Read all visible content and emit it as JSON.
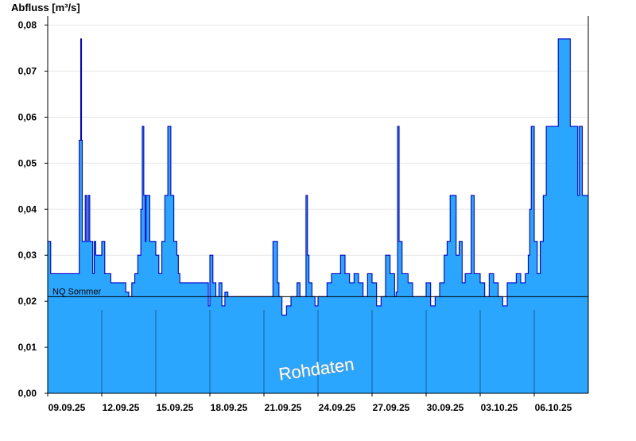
{
  "colors": {
    "fill": "#2aa6ff",
    "line": "#0000d0",
    "grid": "#e6e6e6",
    "ref_line": "#000000",
    "day_line": "#1f5f8f"
  },
  "chart_data": {
    "type": "area",
    "ylabel": "Abfluss [m³/s]",
    "ylim": [
      0,
      0.082
    ],
    "y_ticks": [
      0,
      0.01,
      0.02,
      0.03,
      0.04,
      0.05,
      0.06,
      0.07,
      0.08
    ],
    "y_tick_labels": [
      "0,00",
      "0,01",
      "0,02",
      "0,03",
      "0,04",
      "0,05",
      "0,06",
      "0,07",
      "0,08"
    ],
    "xlim": [
      "2025-09-09T00:00",
      "2025-10-09T00:00"
    ],
    "x_ticks": [
      "2025-09-09",
      "2025-09-12",
      "2025-09-15",
      "2025-09-18",
      "2025-09-21",
      "2025-09-24",
      "2025-09-27",
      "2025-09-30",
      "2025-10-03",
      "2025-10-06"
    ],
    "x_tick_labels": [
      "09.09.25",
      "12.09.25",
      "15.09.25",
      "18.09.25",
      "21.09.25",
      "24.09.25",
      "27.09.25",
      "30.09.25",
      "03.10.25",
      "06.10.25"
    ],
    "grid": true,
    "reference_line": {
      "label": "NQ Sommer",
      "value": 0.021
    },
    "watermark": "Rohdaten",
    "series": [
      {
        "x": [
          "2025-09-09T00:00",
          "2025-09-09T04:00",
          "2025-09-09T06:00",
          "2025-09-09T08:00",
          "2025-09-10T00:00",
          "2025-09-10T16:00",
          "2025-09-10T18:00",
          "2025-09-10T20:00",
          "2025-09-10T21:00",
          "2025-09-10T22:00",
          "2025-09-11T00:00",
          "2025-09-11T02:00",
          "2025-09-11T04:00",
          "2025-09-11T06:00",
          "2025-09-11T08:00",
          "2025-09-11T10:00",
          "2025-09-11T12:00",
          "2025-09-11T14:00",
          "2025-09-11T16:00",
          "2025-09-12T00:00",
          "2025-09-12T04:00",
          "2025-09-12T08:00",
          "2025-09-12T12:00",
          "2025-09-12T16:00",
          "2025-09-13T00:00",
          "2025-09-13T08:00",
          "2025-09-13T12:00",
          "2025-09-13T16:00",
          "2025-09-13T20:00",
          "2025-09-14T00:00",
          "2025-09-14T04:00",
          "2025-09-14T06:00",
          "2025-09-14T08:00",
          "2025-09-14T10:00",
          "2025-09-14T11:00",
          "2025-09-14T12:00",
          "2025-09-14T14:00",
          "2025-09-14T16:00",
          "2025-09-15T00:00",
          "2025-09-15T04:00",
          "2025-09-15T08:00",
          "2025-09-15T12:00",
          "2025-09-15T16:00",
          "2025-09-15T20:00",
          "2025-09-16T00:00",
          "2025-09-16T04:00",
          "2025-09-16T06:00",
          "2025-09-16T08:00",
          "2025-09-16T12:00",
          "2025-09-16T16:00",
          "2025-09-16T20:00",
          "2025-09-17T00:00",
          "2025-09-17T12:00",
          "2025-09-17T22:00",
          "2025-09-18T00:00",
          "2025-09-18T04:00",
          "2025-09-18T08:00",
          "2025-09-18T12:00",
          "2025-09-18T16:00",
          "2025-09-18T20:00",
          "2025-09-19T00:00",
          "2025-09-19T04:00",
          "2025-09-19T08:00",
          "2025-09-19T12:00",
          "2025-09-19T20:00",
          "2025-09-20T00:00",
          "2025-09-20T12:00",
          "2025-09-21T00:00",
          "2025-09-21T12:00",
          "2025-09-21T18:00",
          "2025-09-21T20:00",
          "2025-09-21T22:00",
          "2025-09-22T00:00",
          "2025-09-22T06:00",
          "2025-09-22T12:00",
          "2025-09-22T16:00",
          "2025-09-22T20:00",
          "2025-09-23T00:00",
          "2025-09-23T06:00",
          "2025-09-23T08:00",
          "2025-09-23T10:00",
          "2025-09-23T12:00",
          "2025-09-23T16:00",
          "2025-09-23T20:00",
          "2025-09-24T00:00",
          "2025-09-24T06:00",
          "2025-09-24T12:00",
          "2025-09-24T18:00",
          "2025-09-25T00:00",
          "2025-09-25T06:00",
          "2025-09-25T12:00",
          "2025-09-25T18:00",
          "2025-09-26T00:00",
          "2025-09-26T06:00",
          "2025-09-26T12:00",
          "2025-09-26T18:00",
          "2025-09-27T00:00",
          "2025-09-27T06:00",
          "2025-09-27T12:00",
          "2025-09-27T18:00",
          "2025-09-28T00:00",
          "2025-09-28T06:00",
          "2025-09-28T08:00",
          "2025-09-28T10:00",
          "2025-09-28T12:00",
          "2025-09-28T16:00",
          "2025-09-29T00:00",
          "2025-09-29T06:00",
          "2025-09-29T12:00",
          "2025-09-29T18:00",
          "2025-09-30T00:00",
          "2025-09-30T06:00",
          "2025-09-30T12:00",
          "2025-09-30T18:00",
          "2025-10-01T00:00",
          "2025-10-01T04:00",
          "2025-10-01T08:00",
          "2025-10-01T12:00",
          "2025-10-01T16:00",
          "2025-10-01T20:00",
          "2025-10-02T00:00",
          "2025-10-02T04:00",
          "2025-10-02T08:00",
          "2025-10-02T12:00",
          "2025-10-02T16:00",
          "2025-10-03T00:00",
          "2025-10-03T06:00",
          "2025-10-03T12:00",
          "2025-10-03T18:00",
          "2025-10-04T00:00",
          "2025-10-04T06:00",
          "2025-10-04T12:00",
          "2025-10-04T18:00",
          "2025-10-05T00:00",
          "2025-10-05T06:00",
          "2025-10-05T12:00",
          "2025-10-05T16:00",
          "2025-10-05T18:00",
          "2025-10-05T20:00",
          "2025-10-06T00:00",
          "2025-10-06T04:00",
          "2025-10-06T08:00",
          "2025-10-06T12:00",
          "2025-10-06T16:00",
          "2025-10-07T00:00",
          "2025-10-07T08:00",
          "2025-10-07T16:00",
          "2025-10-08T00:00",
          "2025-10-08T06:00",
          "2025-10-08T10:00",
          "2025-10-08T12:00",
          "2025-10-08T16:00",
          "2025-10-09T00:00"
        ],
        "y": [
          0.033,
          0.026,
          0.026,
          0.026,
          0.026,
          0.026,
          0.055,
          0.077,
          0.055,
          0.033,
          0.033,
          0.043,
          0.033,
          0.043,
          0.033,
          0.033,
          0.026,
          0.033,
          0.03,
          0.033,
          0.026,
          0.026,
          0.024,
          0.024,
          0.024,
          0.022,
          0.021,
          0.024,
          0.026,
          0.03,
          0.04,
          0.058,
          0.043,
          0.033,
          0.043,
          0.043,
          0.043,
          0.033,
          0.03,
          0.026,
          0.033,
          0.043,
          0.058,
          0.043,
          0.033,
          0.03,
          0.026,
          0.024,
          0.024,
          0.024,
          0.024,
          0.024,
          0.024,
          0.019,
          0.03,
          0.024,
          0.021,
          0.024,
          0.019,
          0.022,
          0.021,
          0.021,
          0.021,
          0.021,
          0.021,
          0.021,
          0.021,
          0.021,
          0.033,
          0.024,
          0.021,
          0.021,
          0.017,
          0.019,
          0.021,
          0.021,
          0.024,
          0.021,
          0.021,
          0.043,
          0.03,
          0.024,
          0.021,
          0.019,
          0.021,
          0.021,
          0.024,
          0.026,
          0.026,
          0.03,
          0.026,
          0.024,
          0.026,
          0.024,
          0.021,
          0.026,
          0.024,
          0.019,
          0.021,
          0.03,
          0.026,
          0.021,
          0.022,
          0.058,
          0.033,
          0.026,
          0.024,
          0.021,
          0.021,
          0.021,
          0.024,
          0.019,
          0.021,
          0.024,
          0.03,
          0.033,
          0.043,
          0.043,
          0.03,
          0.033,
          0.024,
          0.026,
          0.026,
          0.043,
          0.026,
          0.024,
          0.021,
          0.026,
          0.024,
          0.021,
          0.019,
          0.024,
          0.024,
          0.026,
          0.024,
          0.026,
          0.03,
          0.04,
          0.058,
          0.033,
          0.026,
          0.033,
          0.043,
          0.058,
          0.058,
          0.077,
          0.077,
          0.058,
          0.058,
          0.043,
          0.058,
          0.043,
          0.043
        ]
      }
    ]
  }
}
